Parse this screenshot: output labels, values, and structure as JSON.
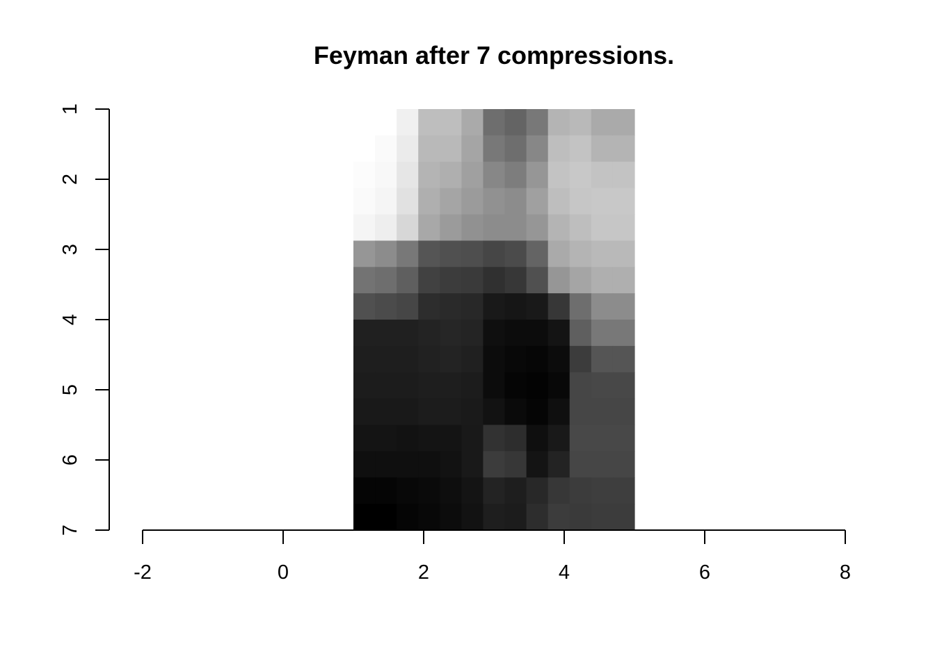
{
  "chart_data": {
    "type": "heatmap",
    "title": "Feyman after 7 compressions.",
    "xlabel": "",
    "ylabel": "",
    "xlim": [
      -2,
      8
    ],
    "ylim": [
      7,
      1
    ],
    "x_ticks": [
      "-2",
      "0",
      "2",
      "4",
      "6",
      "8"
    ],
    "y_ticks": [
      "1",
      "2",
      "3",
      "4",
      "5",
      "6",
      "7"
    ],
    "colormap": "grayscale (0 = black, 255 = white)",
    "extent": {
      "x": [
        1,
        5
      ],
      "y": [
        1,
        7
      ]
    },
    "grid": false,
    "values": [
      [
        255,
        255,
        240,
        190,
        190,
        170,
        110,
        100,
        120,
        180,
        185,
        170,
        170
      ],
      [
        255,
        250,
        235,
        185,
        185,
        165,
        120,
        110,
        135,
        190,
        195,
        180,
        180
      ],
      [
        252,
        248,
        230,
        180,
        175,
        160,
        135,
        125,
        150,
        195,
        200,
        195,
        195
      ],
      [
        250,
        245,
        225,
        175,
        165,
        155,
        145,
        140,
        160,
        190,
        198,
        200,
        200
      ],
      [
        245,
        238,
        215,
        168,
        155,
        145,
        140,
        140,
        150,
        180,
        190,
        198,
        198
      ],
      [
        150,
        140,
        120,
        85,
        80,
        78,
        70,
        75,
        100,
        170,
        180,
        185,
        185
      ],
      [
        115,
        110,
        95,
        65,
        60,
        58,
        48,
        55,
        80,
        150,
        165,
        175,
        175
      ],
      [
        80,
        75,
        70,
        45,
        42,
        40,
        25,
        22,
        25,
        55,
        110,
        140,
        140
      ],
      [
        32,
        32,
        32,
        35,
        38,
        36,
        15,
        12,
        12,
        20,
        95,
        120,
        120
      ],
      [
        30,
        30,
        30,
        33,
        35,
        32,
        12,
        8,
        6,
        12,
        60,
        85,
        85
      ],
      [
        28,
        28,
        28,
        30,
        30,
        28,
        12,
        5,
        3,
        8,
        70,
        72,
        72
      ],
      [
        25,
        25,
        25,
        28,
        28,
        26,
        18,
        10,
        5,
        15,
        70,
        70,
        70
      ],
      [
        20,
        20,
        18,
        20,
        20,
        25,
        50,
        45,
        15,
        25,
        72,
        72,
        72
      ],
      [
        15,
        15,
        15,
        15,
        18,
        25,
        60,
        55,
        20,
        35,
        70,
        70,
        70
      ],
      [
        5,
        5,
        8,
        10,
        14,
        20,
        35,
        30,
        40,
        55,
        60,
        62,
        62
      ],
      [
        0,
        0,
        5,
        8,
        12,
        18,
        30,
        28,
        45,
        60,
        58,
        60,
        60
      ]
    ]
  }
}
